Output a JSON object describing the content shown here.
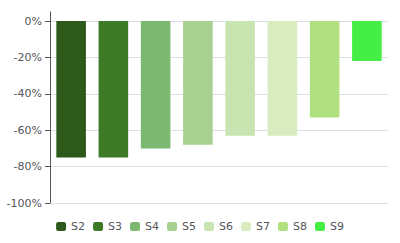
{
  "chart_data": {
    "type": "bar",
    "categories": [
      "S2",
      "S3",
      "S4",
      "S5",
      "S6",
      "S7",
      "S8",
      "S9"
    ],
    "values": [
      -75,
      -75,
      -70,
      -68,
      -63,
      -63,
      -53,
      -22
    ],
    "colors": [
      "#2d5a1b",
      "#3d7a28",
      "#7db870",
      "#a8d090",
      "#c8e4b0",
      "#d8ecc0",
      "#b0e080",
      "#44ee44"
    ],
    "ylim": [
      -100,
      5
    ],
    "yticks": [
      {
        "value": 0,
        "label": "0%"
      },
      {
        "value": -20,
        "label": "-20%"
      },
      {
        "value": -40,
        "label": "-40%"
      },
      {
        "value": -60,
        "label": "-60%"
      },
      {
        "value": -80,
        "label": "-80%"
      },
      {
        "value": -100,
        "label": "-100%"
      }
    ],
    "grid": true,
    "legend": "bottom",
    "tick_labels": "y"
  }
}
